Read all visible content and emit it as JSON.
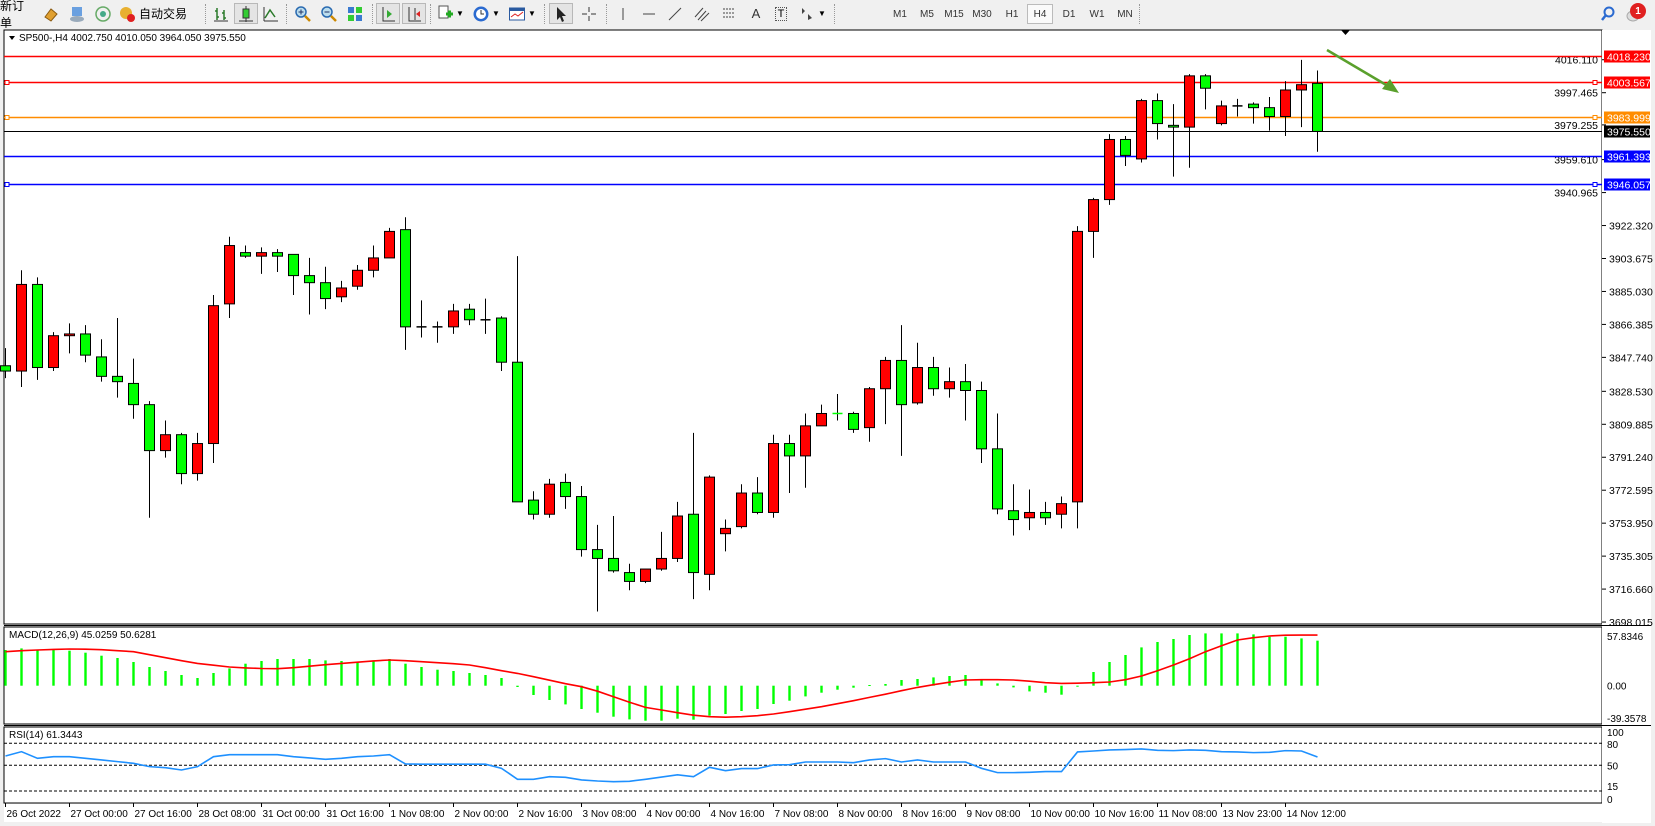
{
  "toolbar": {
    "new_order_label": "新订单",
    "auto_trading_label": "自动交易",
    "timeframes": [
      "M1",
      "M5",
      "M15",
      "M30",
      "H1",
      "H4",
      "D1",
      "W1",
      "MN"
    ],
    "active_timeframe": "H4",
    "text_tool_label": "A",
    "label_tool_label": "T",
    "notification_count": "1"
  },
  "chart_data": {
    "type": "candlestick",
    "header": "SP500-,H4  4002.750 4010.050 3964.050 3975.550",
    "up_color": "#ff0000",
    "down_color": "#00ff00",
    "open": [
      3843,
      3840,
      3889,
      3842,
      3860,
      3861,
      3848,
      3837,
      3833,
      3821,
      3795,
      3804,
      3782,
      3799,
      3878,
      3907,
      3905,
      3907,
      3906,
      3894,
      3890,
      3882,
      3888,
      3897,
      3904,
      3920,
      3865,
      3865,
      3865,
      3875,
      3869,
      3870,
      3845,
      3767,
      3759,
      3777,
      3769,
      3739,
      3734,
      3726,
      3721,
      3728,
      3734,
      3759,
      3725,
      3748,
      3752,
      3771,
      3760,
      3799,
      3792,
      3809,
      3816,
      3816,
      3808,
      3830,
      3846,
      3822,
      3842,
      3830,
      3834,
      3829,
      3796,
      3761,
      3757,
      3760,
      3759,
      3766,
      3919,
      3937,
      3971,
      3960,
      3993,
      3979,
      3978,
      4007,
      3980,
      3990,
      3991,
      3989,
      3984,
      3999,
      4002.75
    ],
    "high": [
      3853,
      3897,
      3893,
      3862,
      3867,
      3866,
      3858,
      3870,
      3847,
      3823,
      3812,
      3805,
      3805,
      3883,
      3916,
      3911,
      3910,
      3909,
      3906,
      3904,
      3899,
      3891,
      3900,
      3911,
      3921,
      3927,
      3880,
      3868,
      3878,
      3878,
      3881,
      3871,
      3905,
      3772,
      3779,
      3782,
      3775,
      3753,
      3758,
      3731,
      3728,
      3749,
      3766,
      3805,
      3781,
      3756,
      3776,
      3780,
      3804,
      3804,
      3816,
      3821,
      3827,
      3817,
      3831,
      3848,
      3866,
      3856,
      3848,
      3842,
      3844,
      3834,
      3816,
      3776,
      3773,
      3766,
      3769,
      3922,
      3938,
      3974,
      3973,
      3994,
      3997,
      3991,
      4008,
      4008,
      3993,
      3994,
      3992,
      3995,
      4004,
      4016,
      4010.05
    ],
    "low": [
      3836,
      3831,
      3835,
      3840,
      3850,
      3845,
      3834,
      3825,
      3813,
      3757,
      3791,
      3776,
      3778,
      3788,
      3870,
      3904,
      3895,
      3896,
      3883,
      3872,
      3875,
      3879,
      3886,
      3893,
      3904,
      3852,
      3859,
      3856,
      3861,
      3866,
      3861,
      3840,
      3766,
      3756,
      3757,
      3762,
      3735,
      3704,
      3726,
      3716,
      3720,
      3727,
      3732,
      3711,
      3716,
      3738,
      3751,
      3759,
      3757,
      3771,
      3774,
      3809,
      3812,
      3805,
      3800,
      3810,
      3792,
      3821,
      3826,
      3825,
      3812,
      3788,
      3759,
      3747,
      3750,
      3753,
      3751,
      3751,
      3904,
      3934,
      3956,
      3958,
      3971,
      3950,
      3955,
      3988,
      3979,
      3984,
      3980,
      3976,
      3973,
      3978,
      3964.05
    ],
    "close": [
      3840,
      3889,
      3842,
      3860,
      3861,
      3849,
      3837,
      3834,
      3821,
      3795,
      3804,
      3782,
      3799,
      3877,
      3911,
      3905,
      3907,
      3905,
      3894,
      3890,
      3881,
      3887,
      3897,
      3904,
      3919,
      3865,
      3865,
      3865,
      3874,
      3869,
      3869,
      3845,
      3766,
      3759,
      3776,
      3769,
      3739,
      3734,
      3727,
      3721,
      3728,
      3734,
      3758,
      3726,
      3780,
      3751,
      3771,
      3760,
      3799,
      3792,
      3809,
      3816,
      3815.8,
      3807,
      3830,
      3846,
      3821,
      3842,
      3830,
      3834,
      3829,
      3796,
      3762,
      3756,
      3760,
      3757,
      3765,
      3919,
      3937,
      3971,
      3962,
      3993,
      3980,
      3978,
      4007,
      4000,
      3990,
      3990,
      3989,
      3984,
      3999,
      4002,
      3975.55
    ],
    "price_range": [
      3698.015,
      4035.0
    ],
    "price_ticks": [
      "4016.110",
      "3997.465",
      "3979.255",
      "3959.610",
      "3940.965",
      "3922.320",
      "3903.675",
      "3885.030",
      "3866.385",
      "3847.740",
      "3828.530",
      "3809.885",
      "3791.240",
      "3772.595",
      "3753.950",
      "3735.305",
      "3716.660",
      "3698.015"
    ],
    "time_labels": [
      "26 Oct 2022",
      "27 Oct 00:00",
      "27 Oct 16:00",
      "28 Oct 08:00",
      "31 Oct 00:00",
      "31 Oct 16:00",
      "1 Nov 08:00",
      "2 Nov 00:00",
      "2 Nov 16:00",
      "3 Nov 08:00",
      "4 Nov 00:00",
      "4 Nov 16:00",
      "7 Nov 08:00",
      "8 Nov 00:00",
      "8 Nov 16:00",
      "9 Nov 08:00",
      "10 Nov 00:00",
      "10 Nov 16:00",
      "11 Nov 08:00",
      "13 Nov 23:00",
      "14 Nov 12:00"
    ],
    "horizontal_lines": [
      {
        "price": "4018.230",
        "color": "#ff0000",
        "handle": false
      },
      {
        "price": "4003.567",
        "color": "#ff0000",
        "handle": true
      },
      {
        "price": "3983.999",
        "color": "#ff8c00",
        "handle": true
      },
      {
        "price": "3975.550",
        "color": "#000000",
        "handle": false
      },
      {
        "price": "3961.393",
        "color": "#0000ff",
        "handle": false
      },
      {
        "price": "3946.057",
        "color": "#0000ff",
        "handle": true
      }
    ],
    "arrow": {
      "color": "#5aa02c",
      "direction": "down-right"
    },
    "macd": {
      "label": "MACD(12,26,9) 45.0259 50.6281",
      "range": [
        -39.3578,
        57.8346
      ],
      "axis_labels": [
        "57.8346",
        "0.00",
        "-39.3578"
      ],
      "histogram_color": "#00ff00",
      "signal_color": "#ff0000",
      "histogram": [
        35.7,
        37.3,
        35.7,
        35.7,
        35,
        33,
        30,
        27.7,
        23.7,
        18.7,
        14.7,
        10.7,
        7.7,
        12.7,
        17.3,
        22,
        24.7,
        26.7,
        26.7,
        26.7,
        25.3,
        24.7,
        24,
        25.3,
        26.7,
        22,
        18.7,
        16,
        14.7,
        12.7,
        10.7,
        7.7,
        -1.3,
        -9.3,
        -14.3,
        -18.7,
        -23.3,
        -27,
        -31,
        -33.7,
        -35,
        -35,
        -33,
        -34,
        -30,
        -28.3,
        -25.3,
        -23.3,
        -18.3,
        -15,
        -10.7,
        -7,
        -4,
        -2,
        0.7,
        1.7,
        5.7,
        6.7,
        8.3,
        9.7,
        10.7,
        6.7,
        2.3,
        -1.7,
        -5.7,
        -7,
        -9,
        -0.7,
        13.7,
        23.7,
        30.7,
        38.3,
        43.7,
        46.7,
        50.7,
        52.3,
        52.3,
        52.3,
        51.3,
        49,
        49,
        47.3,
        45.03
      ],
      "signal": [
        34,
        35,
        35.7,
        36.3,
        36.7,
        36.5,
        36,
        35,
        34,
        31,
        28,
        25,
        22.3,
        20.5,
        18.7,
        17.8,
        17.2,
        17,
        18,
        19.5,
        21,
        22.3,
        23.5,
        24.8,
        25.7,
        25,
        24,
        23,
        22,
        20.7,
        18,
        15,
        12.3,
        9,
        5.5,
        2,
        -1,
        -5.5,
        -11,
        -16.5,
        -21.7,
        -24.3,
        -27,
        -29.5,
        -31,
        -31.5,
        -31,
        -30,
        -28.3,
        -26,
        -23.5,
        -21,
        -18,
        -15,
        -11.7,
        -8.5,
        -5,
        -1.7,
        1,
        3.5,
        5.7,
        6,
        6,
        5.7,
        4.5,
        3,
        2.3,
        2.5,
        3,
        3.7,
        6,
        9.7,
        15,
        20.7,
        27,
        34,
        40,
        45.7,
        48,
        49.7,
        50.5,
        50.6,
        50.63
      ]
    },
    "rsi": {
      "label": "RSI(14) 61.3443",
      "range": [
        0,
        100
      ],
      "levels": [
        80,
        50,
        15
      ],
      "axis_labels": [
        "100",
        "80",
        "50",
        "15",
        "0"
      ],
      "color": "#1e90ff",
      "values": [
        62.7,
        68.6,
        59.5,
        61.8,
        61.8,
        59.5,
        57.3,
        55,
        52.7,
        48.2,
        46.8,
        43.6,
        48.2,
        61.8,
        64.5,
        64.5,
        64.5,
        64.5,
        61.8,
        60,
        58.2,
        59.5,
        61.8,
        62.7,
        64.5,
        51.8,
        51.5,
        51.5,
        51.5,
        51.5,
        51.5,
        45.9,
        30.9,
        30.9,
        34.5,
        33.6,
        30,
        28.6,
        27.7,
        28.2,
        30.9,
        34,
        37,
        34.5,
        47.3,
        42.7,
        45.5,
        45.5,
        50.5,
        50.9,
        54.5,
        54.5,
        54.5,
        53.6,
        57.3,
        59.1,
        54.5,
        57.3,
        54.5,
        54.5,
        54.5,
        45.9,
        40,
        40,
        40.5,
        41.4,
        41.4,
        68.2,
        69.5,
        70.9,
        71.4,
        72.3,
        70.5,
        70,
        70.9,
        70.5,
        68.6,
        68.2,
        67.3,
        67.7,
        70,
        69.5,
        61.34
      ]
    }
  }
}
